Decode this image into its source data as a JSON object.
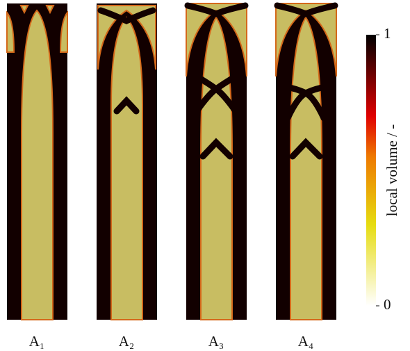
{
  "panels": [
    {
      "label": "A₁"
    },
    {
      "label": "A₂"
    },
    {
      "label": "A₃"
    },
    {
      "label": "A₄"
    }
  ],
  "colorbar": {
    "label": "local volume / -",
    "lim": [
      0,
      1
    ],
    "ticks": [
      0,
      1
    ]
  }
}
